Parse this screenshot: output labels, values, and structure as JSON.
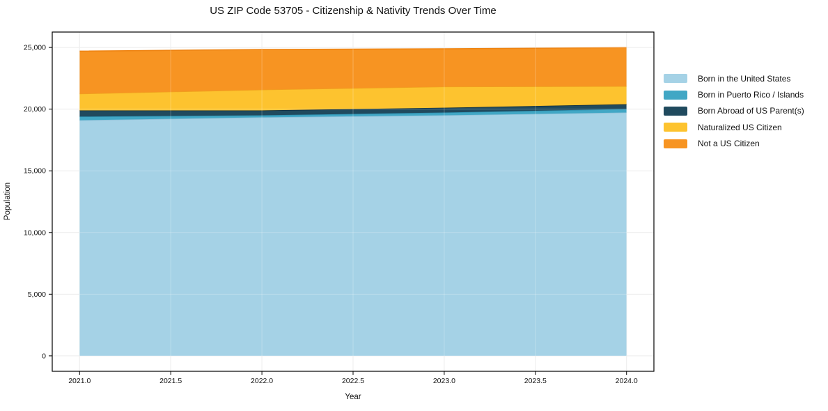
{
  "chart_data": {
    "type": "area",
    "stacked": true,
    "title": "US ZIP Code 53705 - Citizenship & Nativity Trends Over Time",
    "xlabel": "Year",
    "ylabel": "Population",
    "x": [
      2021,
      2022,
      2023,
      2024
    ],
    "series": [
      {
        "name": "Born in the United States",
        "color": "#a5d2e6",
        "edge_color": "#8fc0d8",
        "values": [
          19100,
          19340,
          19500,
          19730
        ]
      },
      {
        "name": "Born in Puerto Rico / Islands",
        "color": "#41a7c5",
        "edge_color": "#2e8fae",
        "values": [
          300,
          160,
          230,
          280
        ]
      },
      {
        "name": "Born Abroad of US Parent(s)",
        "color": "#204a5e",
        "edge_color": "#142f3d",
        "values": [
          500,
          400,
          390,
          390
        ]
      },
      {
        "name": "Naturalized US Citizen",
        "color": "#fdc32f",
        "edge_color": "#f0a01e",
        "values": [
          1350,
          1680,
          1710,
          1460
        ]
      },
      {
        "name": "Not a US Citizen",
        "color": "#f79422",
        "edge_color": "#ee8413",
        "values": [
          3450,
          3250,
          3060,
          3130
        ]
      }
    ],
    "stacked_totals": [
      24700,
      24830,
      24890,
      24990
    ],
    "xlim": [
      2020.85,
      2024.15
    ],
    "ylim": [
      -1250,
      26250
    ],
    "xticks": [
      2021.0,
      2021.5,
      2022.0,
      2022.5,
      2023.0,
      2023.5,
      2024.0
    ],
    "xtick_labels": [
      "2021.0",
      "2021.5",
      "2022.0",
      "2022.5",
      "2023.0",
      "2023.5",
      "2024.0"
    ],
    "yticks": [
      0,
      5000,
      10000,
      15000,
      20000,
      25000
    ],
    "ytick_labels": [
      "0",
      "5,000",
      "10,000",
      "15,000",
      "20,000",
      "25,000"
    ],
    "grid": true,
    "legend_position": "right of plot, no frame",
    "colors": {
      "grid": "#e7e7e7",
      "grid_overlay": "rgba(255,255,255,0.25)",
      "axis": "#000000",
      "text": "#111111",
      "background": "#ffffff"
    }
  }
}
